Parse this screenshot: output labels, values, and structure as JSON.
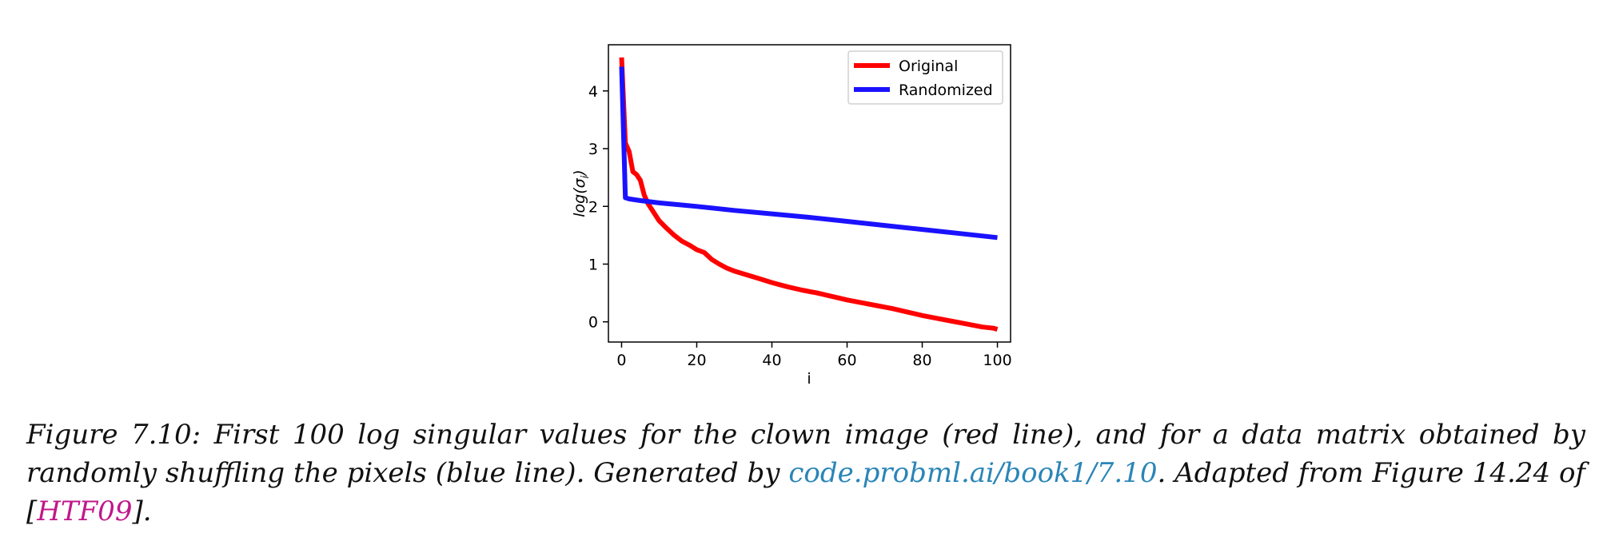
{
  "chart_data": {
    "type": "line",
    "xlabel": "i",
    "ylabel_main": "log(σ",
    "ylabel_sub": "i",
    "ylabel_close": ")",
    "xlim": [
      -3.5,
      103.5
    ],
    "ylim": [
      -0.35,
      4.8
    ],
    "xticks": [
      0,
      20,
      40,
      60,
      80,
      100
    ],
    "yticks": [
      0,
      1,
      2,
      3,
      4
    ],
    "grid": false,
    "legend_position": "top-right",
    "series": [
      {
        "name": "Original",
        "color": "#ff0000",
        "x": [
          0,
          1,
          2,
          3,
          4,
          5,
          6,
          7,
          8,
          9,
          10,
          12,
          14,
          16,
          18,
          20,
          22,
          24,
          26,
          28,
          30,
          33,
          36,
          40,
          44,
          48,
          52,
          56,
          60,
          64,
          68,
          72,
          76,
          80,
          84,
          88,
          92,
          96,
          99,
          100
        ],
        "y": [
          4.58,
          3.1,
          2.95,
          2.6,
          2.55,
          2.45,
          2.2,
          2.05,
          1.95,
          1.85,
          1.75,
          1.62,
          1.5,
          1.4,
          1.33,
          1.25,
          1.2,
          1.08,
          1.0,
          0.93,
          0.88,
          0.82,
          0.76,
          0.68,
          0.61,
          0.55,
          0.5,
          0.44,
          0.38,
          0.33,
          0.28,
          0.23,
          0.17,
          0.11,
          0.06,
          0.01,
          -0.04,
          -0.09,
          -0.11,
          -0.13
        ]
      },
      {
        "name": "Randomized",
        "color": "#1a12ff",
        "x": [
          0,
          1,
          2,
          5,
          10,
          20,
          30,
          40,
          50,
          60,
          70,
          80,
          90,
          100
        ],
        "y": [
          4.42,
          2.15,
          2.13,
          2.1,
          2.06,
          2.0,
          1.93,
          1.87,
          1.81,
          1.74,
          1.67,
          1.6,
          1.53,
          1.46
        ]
      }
    ]
  },
  "caption": {
    "text1": "Figure 7.10: First 100 log singular values for the clown image (red line), and for a data matrix obtained by randomly shuffling the pixels (blue line). Generated by ",
    "link1": "code.probml.ai/book1/7.10",
    "text2": ". Adapted from Figure 14.24 of [",
    "link2": "HTF09",
    "text3": "]."
  }
}
